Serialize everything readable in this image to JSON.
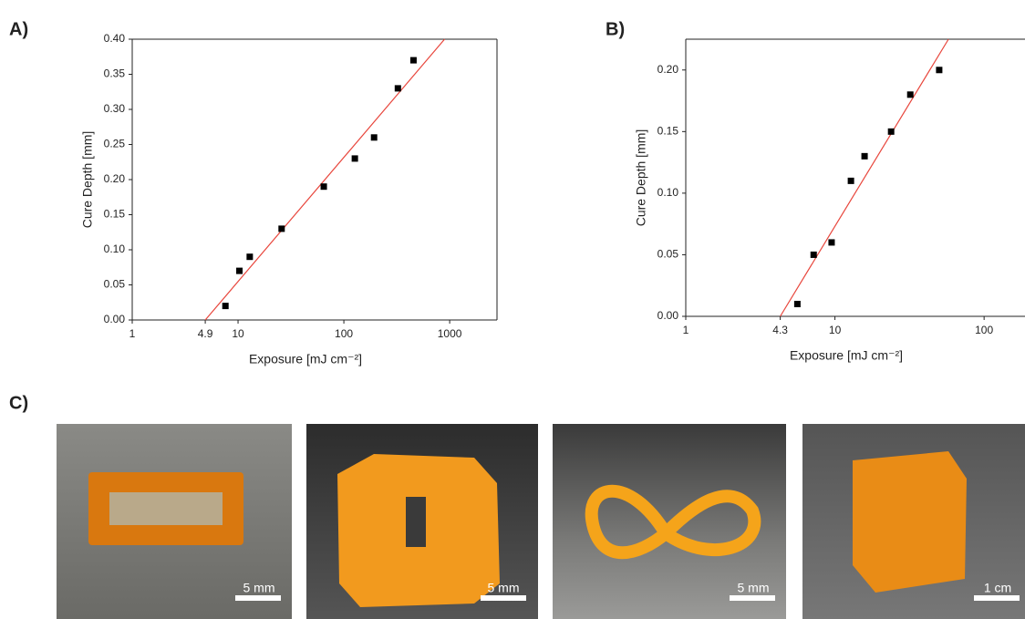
{
  "panel_labels": [
    "A)",
    "B)",
    "C)"
  ],
  "chart_data": [
    {
      "type": "scatter",
      "xlabel": "Exposure [mJ cm⁻²]",
      "ylabel": "Cure Depth [mm]",
      "xscale": "log",
      "xlim": [
        1,
        2800
      ],
      "ylim": [
        0,
        0.4
      ],
      "xticks": [
        1,
        4.9,
        10,
        100,
        1000
      ],
      "yticks": [
        {
          "value": 0,
          "label": "0.00"
        },
        {
          "value": 0.05,
          "label": "0.05"
        },
        {
          "value": 0.1,
          "label": "0.10"
        },
        {
          "value": 0.15,
          "label": "0.15"
        },
        {
          "value": 0.2,
          "label": "0.20"
        },
        {
          "value": 0.25,
          "label": "0.25"
        },
        {
          "value": 0.3,
          "label": "0.30"
        },
        {
          "value": 0.35,
          "label": "0.35"
        },
        {
          "value": 0.4,
          "label": "0.40"
        }
      ],
      "series": [
        {
          "color": "#000000",
          "x": [
            7.6,
            10.3,
            12.9,
            25.8,
            64.6,
            127,
            193,
            324,
            455
          ],
          "values": [
            0.02,
            0.07,
            0.09,
            0.13,
            0.19,
            0.23,
            0.26,
            0.33,
            0.37
          ]
        }
      ],
      "fit_line": {
        "color": "#e8463c",
        "x": [
          4.9,
          895
        ],
        "values": [
          0,
          0.4
        ]
      }
    },
    {
      "type": "scatter",
      "xlabel": "Exposure [mJ cm⁻²]",
      "ylabel": "Cure Depth [mm]",
      "xscale": "log",
      "xlim": [
        1,
        188
      ],
      "ylim": [
        0,
        0.225
      ],
      "xticks": [
        1,
        4.3,
        10,
        100
      ],
      "yticks": [
        {
          "value": 0,
          "label": "0.00"
        },
        {
          "value": 0.05,
          "label": "0.05"
        },
        {
          "value": 0.1,
          "label": "0.10"
        },
        {
          "value": 0.15,
          "label": "0.15"
        },
        {
          "value": 0.2,
          "label": "0.20"
        }
      ],
      "series": [
        {
          "color": "#000000",
          "x": [
            5.6,
            7.2,
            9.5,
            12.8,
            15.8,
            23.8,
            32,
            50
          ],
          "values": [
            0.01,
            0.05,
            0.06,
            0.11,
            0.13,
            0.15,
            0.18,
            0.2
          ]
        }
      ],
      "fit_line": {
        "color": "#e8463c",
        "x": [
          4.3,
          57.7
        ],
        "values": [
          0,
          0.225
        ]
      }
    }
  ],
  "photos": [
    {
      "scale_bar": "5 mm"
    },
    {
      "scale_bar": "5 mm"
    },
    {
      "scale_bar": "5 mm"
    },
    {
      "scale_bar": "1 cm"
    }
  ]
}
